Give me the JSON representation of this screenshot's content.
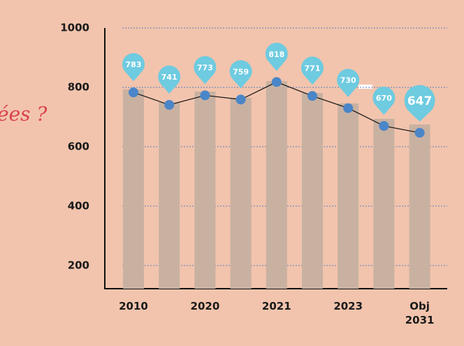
{
  "chart_data": {
    "type": "bar-line",
    "annotation": "ées ?",
    "categories": [
      "2010",
      null,
      "2020",
      null,
      "2021",
      null,
      "2023",
      null,
      "Obj\n2031"
    ],
    "series": [
      {
        "type": "bar",
        "color": "#c9b1a1",
        "values": [
          793,
          750,
          786,
          765,
          821,
          781,
          746,
          694,
          675
        ]
      },
      {
        "type": "line",
        "color": "#4a86c8",
        "label_color": "#6ecbe0",
        "values": [
          783,
          741,
          773,
          759,
          818,
          771,
          730,
          670,
          647
        ]
      }
    ],
    "ylim": [
      122,
      1000
    ],
    "yticks": [
      200,
      400,
      600,
      800,
      1000
    ],
    "grid": true
  }
}
